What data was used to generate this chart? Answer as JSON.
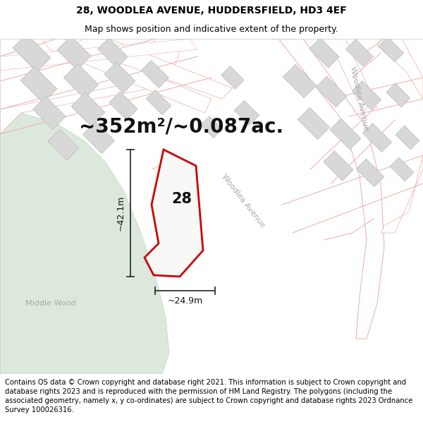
{
  "title_line1": "28, WOODLEA AVENUE, HUDDERSFIELD, HD3 4EF",
  "title_line2": "Map shows position and indicative extent of the property.",
  "area_text": "~352m²/~0.087ac.",
  "number_label": "28",
  "dim_vertical": "~42.1m",
  "dim_horizontal": "~24.9m",
  "street_label_main": "Woodlea Avenue",
  "street_label_upper": "Woodlea Avenue",
  "wood_label": "Middle Wood",
  "footer_text": "Contains OS data © Crown copyright and database right 2021. This information is subject to Crown copyright and database rights 2023 and is reproduced with the permission of HM Land Registry. The polygons (including the associated geometry, namely x, y co-ordinates) are subject to Crown copyright and database rights 2023 Ordnance Survey 100026316.",
  "map_bg": "#f5f4f2",
  "road_fill": "#ffffff",
  "plot_outline": "#cc0000",
  "building_fill": "#d8d8d8",
  "building_edge": "#bbbbbb",
  "road_line_color": "#f0aaaa",
  "green_fill": "#dce8dc",
  "green_edge": "#c0d4c0",
  "footer_bg": "#ffffff",
  "title_bg": "#ffffff",
  "title_fontsize": 10,
  "subtitle_fontsize": 9,
  "area_fontsize": 20,
  "dim_fontsize": 9,
  "footer_fontsize": 7.2,
  "street_fontsize": 8,
  "wood_fontsize": 8
}
